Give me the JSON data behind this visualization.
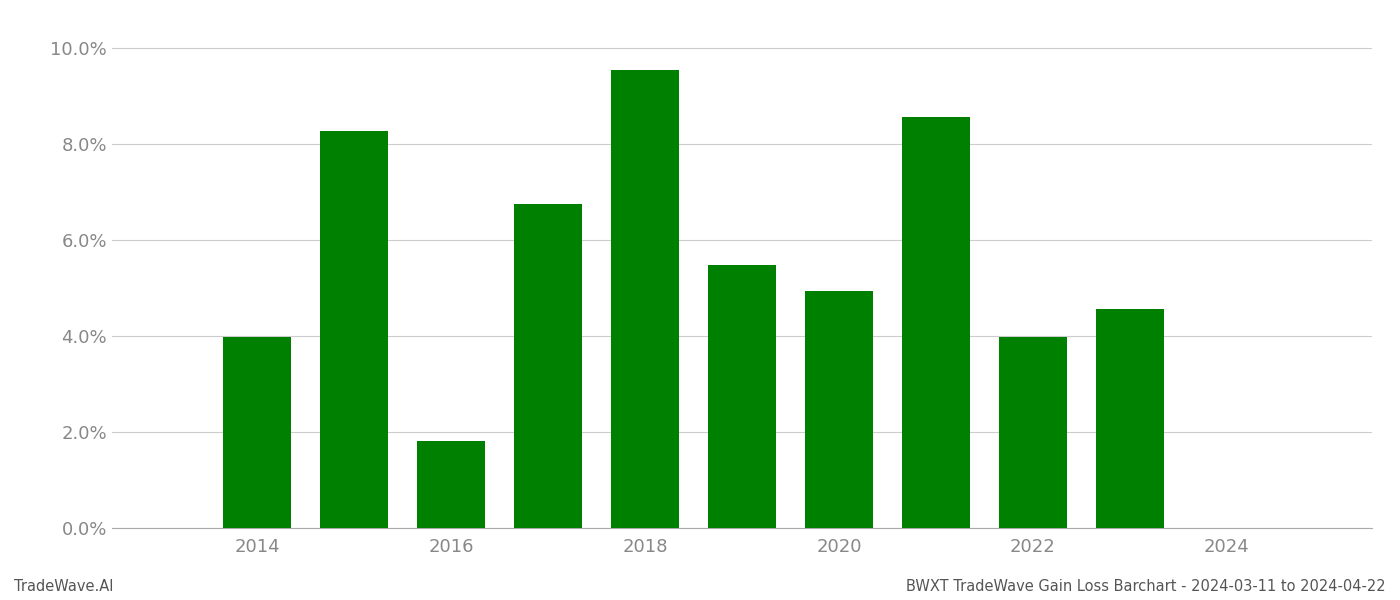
{
  "years": [
    2014,
    2015,
    2016,
    2017,
    2018,
    2019,
    2020,
    2021,
    2022,
    2023
  ],
  "values": [
    0.0398,
    0.0827,
    0.0182,
    0.0675,
    0.0955,
    0.0547,
    0.0493,
    0.0857,
    0.0398,
    0.0457
  ],
  "bar_color": "#008000",
  "ylim": [
    0.0,
    0.105
  ],
  "yticks": [
    0.0,
    0.02,
    0.04,
    0.06,
    0.08,
    0.1
  ],
  "xlim_left": 2012.5,
  "xlim_right": 2025.5,
  "xticks": [
    2014,
    2016,
    2018,
    2020,
    2022,
    2024
  ],
  "footer_left": "TradeWave.AI",
  "footer_right": "BWXT TradeWave Gain Loss Barchart - 2024-03-11 to 2024-04-22",
  "footer_fontsize": 10.5,
  "tick_fontsize": 13,
  "bar_width": 0.7,
  "background_color": "#ffffff",
  "grid_color": "#cccccc",
  "spine_color": "#aaaaaa",
  "tick_color": "#888888"
}
